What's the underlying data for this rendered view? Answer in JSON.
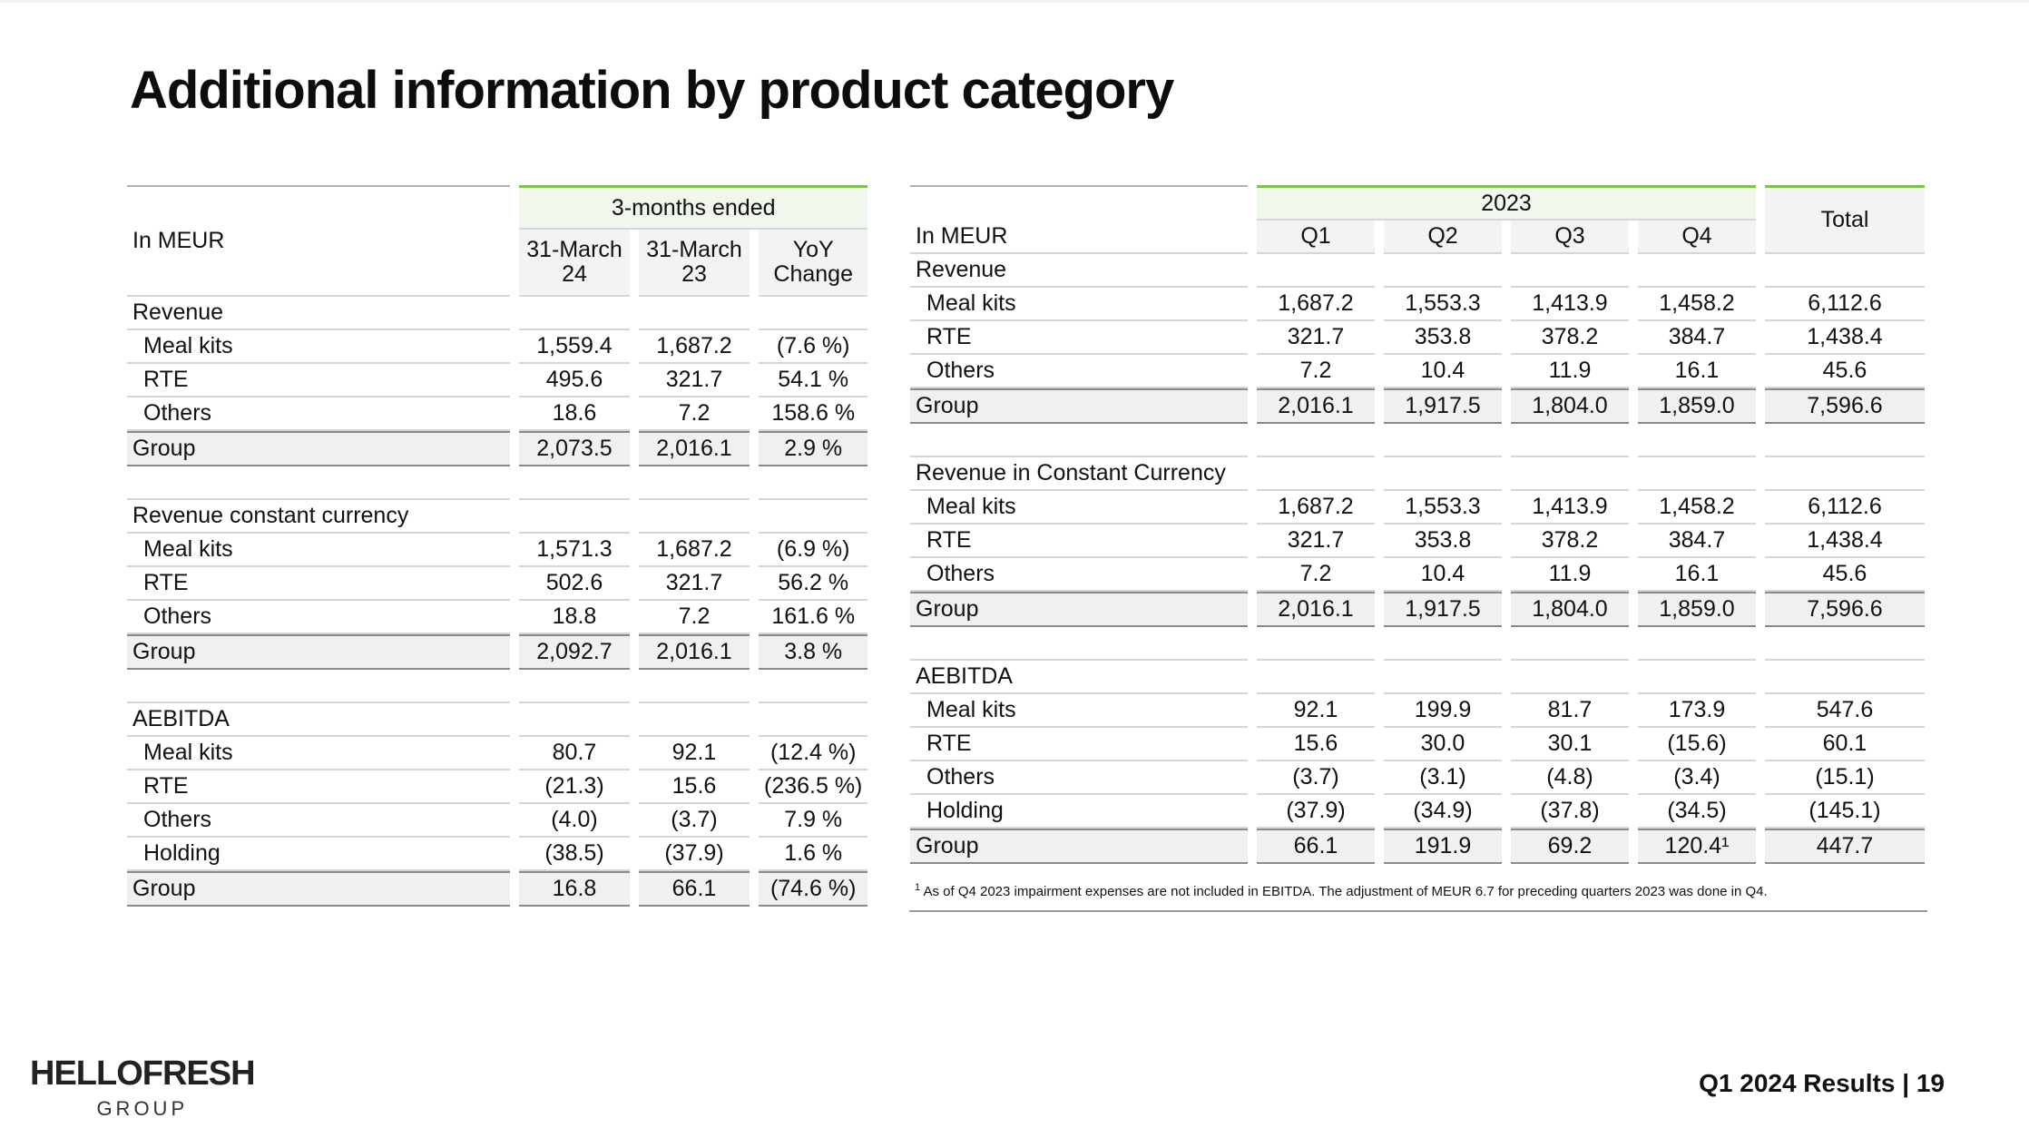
{
  "title": "Additional information by product category",
  "left_table": {
    "unit": "In MEUR",
    "period_header": "3-months ended",
    "col1": "31-March 24",
    "col2": "31-March 23",
    "col3": "YoY Change",
    "sections": [
      {
        "heading": "Revenue",
        "rows": [
          {
            "label": "Meal kits",
            "v1": "1,559.4",
            "v2": "1,687.2",
            "v3": "(7.6 %)"
          },
          {
            "label": "RTE",
            "v1": "495.6",
            "v2": "321.7",
            "v3": "54.1 %"
          },
          {
            "label": "Others",
            "v1": "18.6",
            "v2": "7.2",
            "v3": "158.6 %"
          }
        ],
        "group": {
          "label": "Group",
          "v1": "2,073.5",
          "v2": "2,016.1",
          "v3": "2.9 %"
        }
      },
      {
        "heading": "Revenue constant currency",
        "rows": [
          {
            "label": "Meal kits",
            "v1": "1,571.3",
            "v2": "1,687.2",
            "v3": "(6.9 %)"
          },
          {
            "label": "RTE",
            "v1": "502.6",
            "v2": "321.7",
            "v3": "56.2 %"
          },
          {
            "label": "Others",
            "v1": "18.8",
            "v2": "7.2",
            "v3": "161.6 %"
          }
        ],
        "group": {
          "label": "Group",
          "v1": "2,092.7",
          "v2": "2,016.1",
          "v3": "3.8 %"
        }
      },
      {
        "heading": "AEBITDA",
        "rows": [
          {
            "label": "Meal kits",
            "v1": "80.7",
            "v2": "92.1",
            "v3": "(12.4 %)"
          },
          {
            "label": "RTE",
            "v1": "(21.3)",
            "v2": "15.6",
            "v3": "(236.5 %)"
          },
          {
            "label": "Others",
            "v1": "(4.0)",
            "v2": "(3.7)",
            "v3": "7.9 %"
          },
          {
            "label": "Holding",
            "v1": "(38.5)",
            "v2": "(37.9)",
            "v3": "1.6 %"
          }
        ],
        "group": {
          "label": "Group",
          "v1": "16.8",
          "v2": "66.1",
          "v3": "(74.6 %)"
        }
      }
    ]
  },
  "right_table": {
    "unit": "In MEUR",
    "year": "2023",
    "quarters": [
      "Q1",
      "Q2",
      "Q3",
      "Q4"
    ],
    "total": "Total",
    "sections": [
      {
        "heading": "Revenue",
        "rows": [
          {
            "label": "Meal kits",
            "q": [
              "1,687.2",
              "1,553.3",
              "1,413.9",
              "1,458.2"
            ],
            "total": "6,112.6"
          },
          {
            "label": "RTE",
            "q": [
              "321.7",
              "353.8",
              "378.2",
              "384.7"
            ],
            "total": "1,438.4"
          },
          {
            "label": "Others",
            "q": [
              "7.2",
              "10.4",
              "11.9",
              "16.1"
            ],
            "total": "45.6"
          }
        ],
        "group": {
          "label": "Group",
          "q": [
            "2,016.1",
            "1,917.5",
            "1,804.0",
            "1,859.0"
          ],
          "total": "7,596.6"
        }
      },
      {
        "heading": "Revenue in Constant Currency",
        "rows": [
          {
            "label": "Meal kits",
            "q": [
              "1,687.2",
              "1,553.3",
              "1,413.9",
              "1,458.2"
            ],
            "total": "6,112.6"
          },
          {
            "label": "RTE",
            "q": [
              "321.7",
              "353.8",
              "378.2",
              "384.7"
            ],
            "total": "1,438.4"
          },
          {
            "label": "Others",
            "q": [
              "7.2",
              "10.4",
              "11.9",
              "16.1"
            ],
            "total": "45.6"
          }
        ],
        "group": {
          "label": "Group",
          "q": [
            "2,016.1",
            "1,917.5",
            "1,804.0",
            "1,859.0"
          ],
          "total": "7,596.6"
        }
      },
      {
        "heading": "AEBITDA",
        "rows": [
          {
            "label": "Meal kits",
            "q": [
              "92.1",
              "199.9",
              "81.7",
              "173.9"
            ],
            "total": "547.6"
          },
          {
            "label": "RTE",
            "q": [
              "15.6",
              "30.0",
              "30.1",
              "(15.6)"
            ],
            "total": "60.1"
          },
          {
            "label": "Others",
            "q": [
              "(3.7)",
              "(3.1)",
              "(4.8)",
              "(3.4)"
            ],
            "total": "(15.1)"
          },
          {
            "label": "Holding",
            "q": [
              "(37.9)",
              "(34.9)",
              "(37.8)",
              "(34.5)"
            ],
            "total": "(145.1)"
          }
        ],
        "group": {
          "label": "Group",
          "q": [
            "66.1",
            "191.9",
            "69.2",
            "120.4¹"
          ],
          "total": "447.7"
        }
      }
    ]
  },
  "footnote": {
    "marker": "1",
    "text": "As of Q4 2023 impairment expenses are not included in EBITDA. The adjustment of MEUR 6.7 for preceding quarters 2023 was done in Q4."
  },
  "footer": {
    "brand": "HELLOFRESH",
    "brand_sub": "GROUP",
    "page": "Q1 2024 Results | 19"
  }
}
